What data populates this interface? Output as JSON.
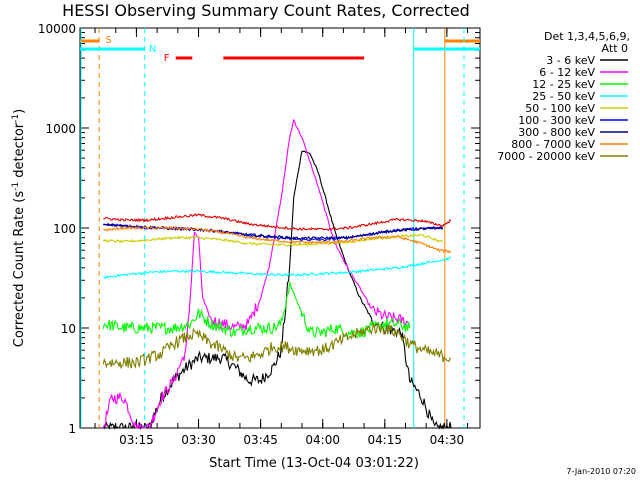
{
  "chart_data": {
    "type": "line",
    "title": "HESSI Observing Summary Count Rates, Corrected",
    "xlabel": "Start Time (13-Oct-04 03:01:22)",
    "ylabel": "Corrected Count Rate (s⁻¹ detector⁻¹)",
    "ylabel_main": "Corrected Count Rate (s",
    "ylabel_mid": " detector",
    "ylabel_end": ")",
    "ylabel_sup": "-1",
    "y_scale": "log",
    "ylim": [
      1,
      10000
    ],
    "xlim_minutes": [
      "03:01:22",
      "04:38:00"
    ],
    "x_ticks": [
      "03:15",
      "03:30",
      "03:45",
      "04:00",
      "04:15",
      "04:30"
    ],
    "y_ticks": [
      "1",
      "10",
      "100",
      "1000",
      "10000"
    ],
    "legend": {
      "header_line1": "Det 1,3,4,5,6,9,",
      "header_line2": "Att 0",
      "placement": "outside-right"
    },
    "footer_date": "7-Jan-2010 07:20",
    "flag_labels": {
      "saa": "S",
      "night": "N",
      "flare": "F"
    },
    "flag_colors": {
      "saa": "#ff8000",
      "night": "#00ffff",
      "flare": "#ff0000"
    },
    "series": [
      {
        "name": "3 - 6 keV",
        "color": "#000000",
        "t": [
          "03:07",
          "03:15",
          "03:18",
          "03:21",
          "03:24",
          "03:27",
          "03:30",
          "03:33",
          "03:36",
          "03:39",
          "03:42",
          "03:45",
          "03:48",
          "03:50",
          "03:52",
          "03:53",
          "03:55",
          "03:57",
          "03:59",
          "04:01",
          "04:03",
          "04:06",
          "04:09",
          "04:12",
          "04:15",
          "04:19",
          "04:21",
          "04:24",
          "04:27",
          "04:31"
        ],
        "values": [
          1,
          1,
          1,
          2,
          3,
          4,
          5,
          5,
          5,
          4,
          3,
          3,
          4,
          6,
          40,
          200,
          600,
          550,
          350,
          180,
          90,
          40,
          20,
          12,
          10,
          9,
          3,
          2,
          1,
          1
        ]
      },
      {
        "name": "6 - 12 keV",
        "color": "#ff00ff",
        "t": [
          "03:07",
          "03:09",
          "03:12",
          "03:15",
          "03:18",
          "03:21",
          "03:24",
          "03:27",
          "03:28",
          "03:29",
          "03:30",
          "03:31",
          "03:33",
          "03:36",
          "03:39",
          "03:42",
          "03:45",
          "03:47",
          "03:50",
          "03:52",
          "03:53",
          "03:55",
          "03:57",
          "03:59",
          "04:01",
          "04:03",
          "04:06",
          "04:09",
          "04:12",
          "04:15",
          "04:19",
          "04:21"
        ],
        "values": [
          1,
          2,
          2,
          1,
          1,
          2,
          3,
          6,
          20,
          90,
          80,
          20,
          12,
          11,
          10,
          11,
          20,
          40,
          200,
          800,
          1200,
          800,
          450,
          250,
          130,
          70,
          40,
          25,
          15,
          13,
          12,
          11
        ]
      },
      {
        "name": "12 - 25 keV",
        "color": "#00ff00",
        "t": [
          "03:07",
          "03:12",
          "03:18",
          "03:24",
          "03:28",
          "03:30",
          "03:33",
          "03:36",
          "03:39",
          "03:42",
          "03:45",
          "03:48",
          "03:50",
          "03:52",
          "03:55",
          "03:57",
          "04:00",
          "04:03",
          "04:06",
          "04:09",
          "04:12",
          "04:15",
          "04:18",
          "04:21"
        ],
        "values": [
          11,
          10,
          10,
          10,
          11,
          14,
          11,
          10,
          9,
          10,
          10,
          10,
          11,
          28,
          14,
          9,
          9,
          10,
          9,
          9,
          10,
          11,
          11,
          10
        ]
      },
      {
        "name": "25 - 50 keV",
        "color": "#00ffff",
        "t": [
          "03:07",
          "03:12",
          "03:18",
          "03:24",
          "03:30",
          "03:36",
          "03:42",
          "03:48",
          "03:54",
          "04:00",
          "04:06",
          "04:12",
          "04:18",
          "04:24",
          "04:31"
        ],
        "values": [
          32,
          34,
          36,
          37,
          37,
          36,
          35,
          34,
          34,
          35,
          36,
          38,
          40,
          44,
          50
        ]
      },
      {
        "name": "50 - 100 keV",
        "color": "#cccc00",
        "t": [
          "03:07",
          "03:12",
          "03:18",
          "03:24",
          "03:30",
          "03:36",
          "03:42",
          "03:48",
          "03:54",
          "04:00",
          "04:06",
          "04:12",
          "04:18",
          "04:24",
          "04:29"
        ],
        "values": [
          75,
          73,
          76,
          80,
          80,
          76,
          70,
          68,
          68,
          70,
          72,
          78,
          82,
          85,
          72
        ]
      },
      {
        "name": "100 - 300 keV",
        "color": "#0000ff",
        "t": [
          "03:07",
          "03:12",
          "03:18",
          "03:24",
          "03:30",
          "03:36",
          "03:42",
          "03:48",
          "03:54",
          "04:00",
          "04:06",
          "04:12",
          "04:18",
          "04:24",
          "04:29"
        ],
        "values": [
          110,
          105,
          100,
          98,
          96,
          92,
          85,
          80,
          77,
          76,
          80,
          88,
          95,
          100,
          100
        ]
      },
      {
        "name": "300 - 800 keV",
        "color": "#000080",
        "t": [
          "03:07",
          "03:18",
          "03:30",
          "03:42",
          "03:54",
          "04:06",
          "04:18",
          "04:29"
        ],
        "values": [
          108,
          102,
          97,
          86,
          79,
          80,
          95,
          100
        ]
      },
      {
        "name": "800 - 7000 keV",
        "color": "#ff8000",
        "t": [
          "03:07",
          "03:12",
          "03:18",
          "03:24",
          "03:30",
          "03:36",
          "03:42",
          "03:48",
          "03:54",
          "04:00",
          "04:06",
          "04:12",
          "04:18",
          "04:24",
          "04:28",
          "04:31"
        ],
        "values": [
          95,
          100,
          100,
          100,
          97,
          90,
          80,
          75,
          72,
          72,
          74,
          80,
          82,
          70,
          60,
          58
        ]
      },
      {
        "name": "7000 - 20000 keV",
        "color": "#808000",
        "t": [
          "03:07",
          "03:12",
          "03:15",
          "03:18",
          "03:21",
          "03:24",
          "03:28",
          "03:30",
          "03:33",
          "03:36",
          "03:39",
          "03:42",
          "03:45",
          "03:48",
          "03:51",
          "03:54",
          "03:57",
          "04:00",
          "04:03",
          "04:06",
          "04:09",
          "04:12",
          "04:15",
          "04:18",
          "04:21",
          "04:24",
          "04:27",
          "04:31"
        ],
        "values": [
          4.5,
          4.5,
          4.5,
          5,
          5.5,
          7,
          8.5,
          8.5,
          7,
          6,
          5,
          5,
          5.5,
          6.5,
          6.5,
          6,
          6,
          6,
          7,
          8,
          9,
          10,
          10,
          9,
          7,
          6,
          5.5,
          5
        ]
      },
      {
        "name": "Red (flare band)",
        "color": "#dd0000",
        "legend": false,
        "t": [
          "03:07",
          "03:12",
          "03:18",
          "03:24",
          "03:30",
          "03:36",
          "03:42",
          "03:48",
          "03:54",
          "04:00",
          "04:06",
          "04:12",
          "04:18",
          "04:24",
          "04:29",
          "04:31"
        ],
        "values": [
          125,
          120,
          120,
          128,
          135,
          125,
          110,
          103,
          98,
          97,
          100,
          110,
          122,
          118,
          105,
          120
        ]
      }
    ],
    "saa_periods": [
      [
        "03:01:22",
        "03:06:00"
      ],
      [
        "04:29:30",
        "04:38:00"
      ]
    ],
    "night_periods": [
      [
        "03:01:22",
        "03:17:00"
      ],
      [
        "04:22:00",
        "04:38:00"
      ]
    ],
    "flare_periods": [
      [
        "03:24:30",
        "03:28:30"
      ],
      [
        "03:36:00",
        "04:10:00"
      ]
    ]
  }
}
